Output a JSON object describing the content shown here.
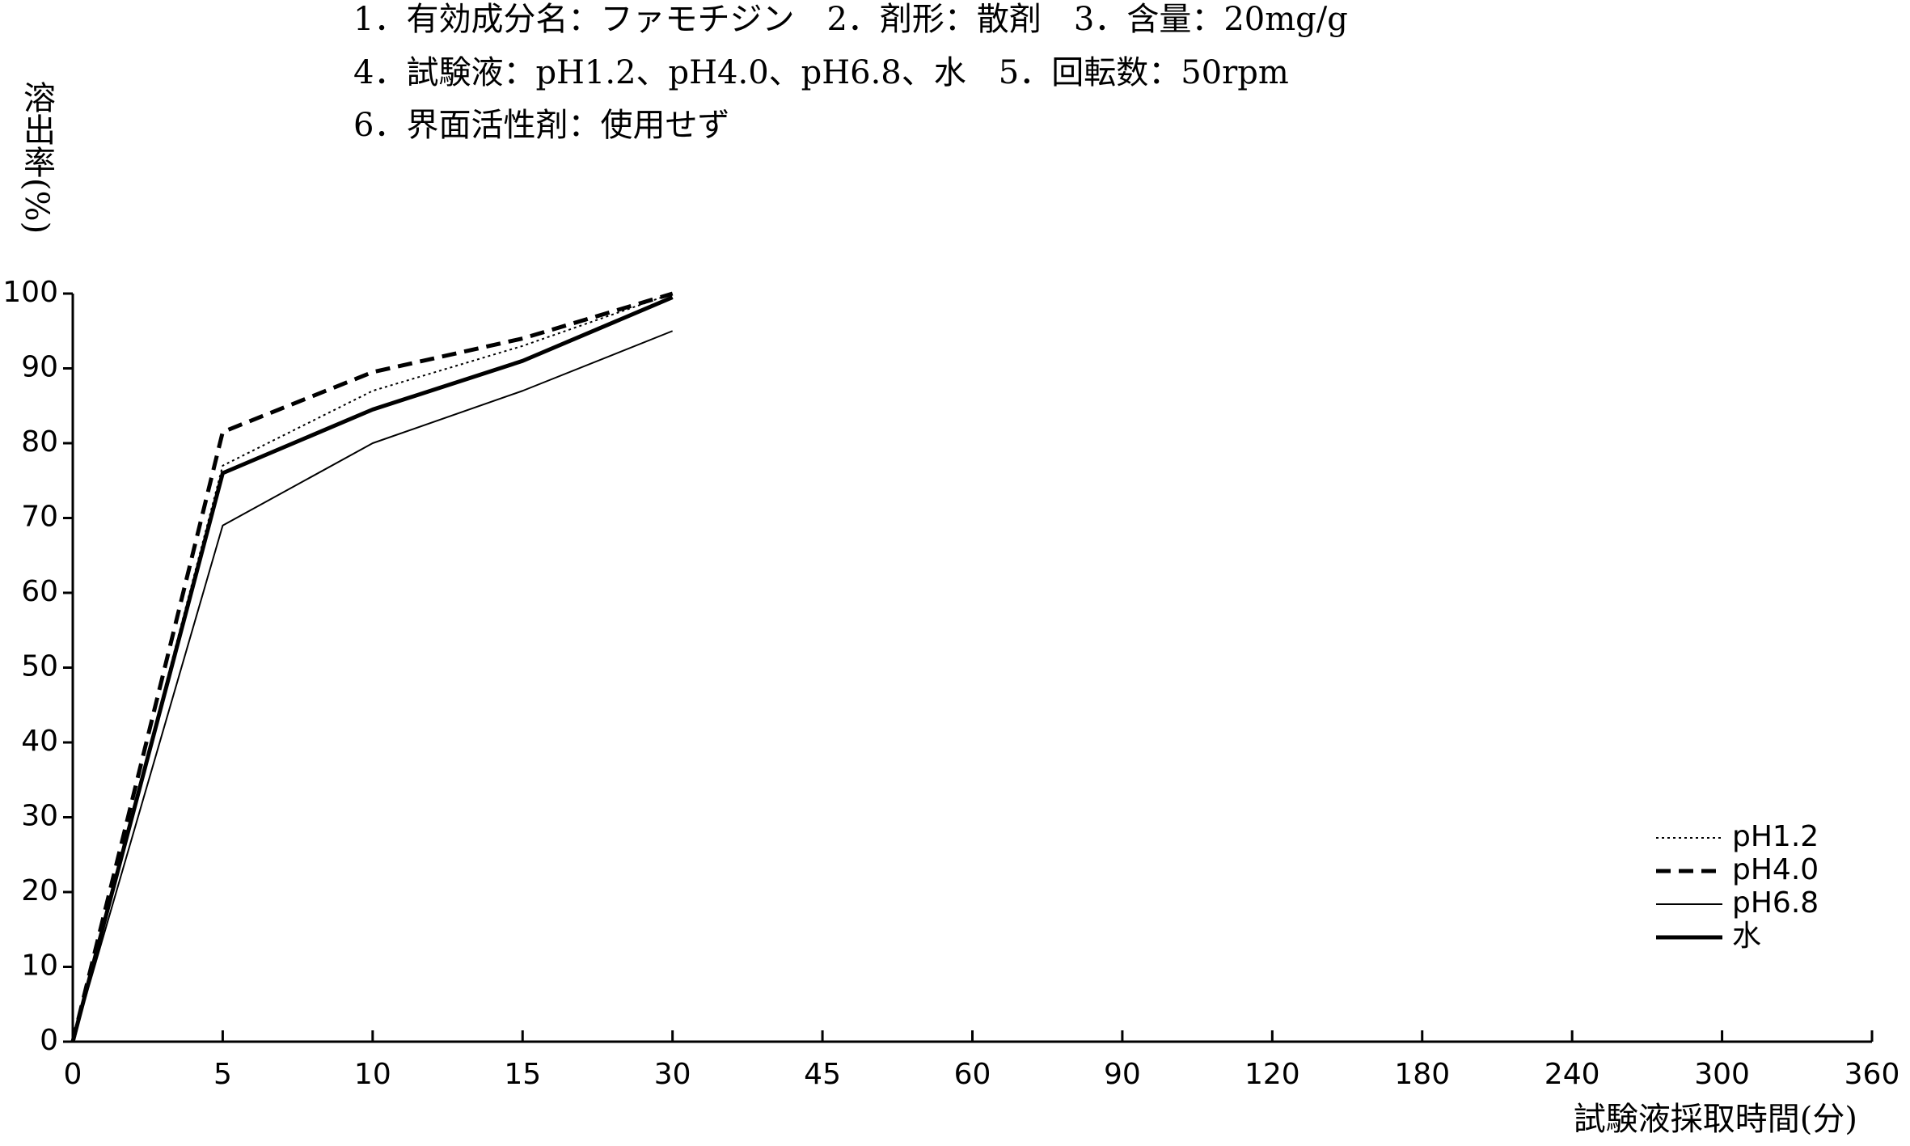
{
  "chart_data": {
    "type": "line",
    "notes": [
      "1．有効成分名：ファモチジン　2．剤形：散剤　3．含量：20mg/g",
      "4．試験液：pH1.2、pH4.0、pH6.8、水　5．回転数：50rpm",
      "6．界面活性剤：使用せず"
    ],
    "y_label": "溶出率(%)",
    "x_label": "試験液採取時間(分)",
    "categories": [
      "0",
      "5",
      "10",
      "15",
      "30",
      "45",
      "60",
      "90",
      "120",
      "180",
      "240",
      "300",
      "360"
    ],
    "series": [
      {
        "name": "pH1.2",
        "color": "#000000",
        "style": "dotted",
        "values": [
          0,
          77,
          87,
          93,
          100,
          null,
          null,
          null,
          null,
          null,
          null,
          null,
          null
        ]
      },
      {
        "name": "pH4.0",
        "color": "#000000",
        "style": "dashed",
        "values": [
          0,
          81.5,
          89.5,
          94,
          100,
          null,
          null,
          null,
          null,
          null,
          null,
          null,
          null
        ]
      },
      {
        "name": "pH6.8",
        "color": "#000000",
        "style": "thin",
        "values": [
          0,
          69,
          80,
          87,
          95,
          null,
          null,
          null,
          null,
          null,
          null,
          null,
          null
        ]
      },
      {
        "name": "水",
        "color": "#000000",
        "style": "thick",
        "values": [
          0,
          76,
          84.5,
          91,
          99.5,
          null,
          null,
          null,
          null,
          null,
          null,
          null,
          null
        ]
      }
    ],
    "ylim": [
      0,
      100
    ],
    "yticks": [
      0,
      10,
      20,
      30,
      40,
      50,
      60,
      70,
      80,
      90,
      100
    ],
    "grid": false,
    "legend": "lower right"
  }
}
